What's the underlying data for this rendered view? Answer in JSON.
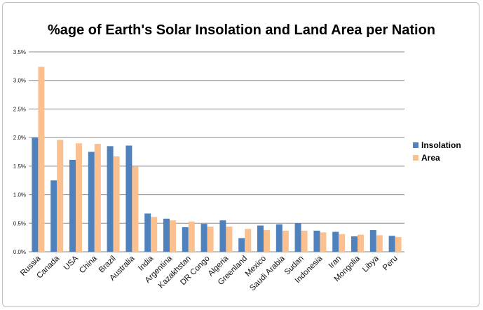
{
  "chart_data": {
    "type": "bar",
    "title": "%age of Earth's Solar Insolation and Land Area per Nation",
    "xlabel": "",
    "ylabel": "",
    "ylim": [
      0,
      3.5
    ],
    "yticks": [
      "0.0%",
      "0.5%",
      "1.0%",
      "1.5%",
      "2.0%",
      "2.5%",
      "3.0%",
      "3.5%"
    ],
    "grid": true,
    "legend_position": "right",
    "categories": [
      "Russia",
      "Canada",
      "USA",
      "China",
      "Brazil",
      "Australia",
      "India",
      "Argentina",
      "Kazakhstan",
      "DR Congo",
      "Algeria",
      "Greenland",
      "Mexico",
      "Saudi Arabia",
      "Sudan",
      "Indonesia",
      "Iran",
      "Mongolia",
      "Libya",
      "Peru"
    ],
    "series": [
      {
        "name": "Insolation",
        "color": "#4f81bd",
        "values": [
          2.0,
          1.25,
          1.61,
          1.75,
          1.85,
          1.86,
          0.67,
          0.58,
          0.43,
          0.49,
          0.55,
          0.24,
          0.46,
          0.48,
          0.5,
          0.37,
          0.35,
          0.27,
          0.38,
          0.28
        ]
      },
      {
        "name": "Area",
        "color": "#fac090",
        "values": [
          3.24,
          1.96,
          1.9,
          1.89,
          1.67,
          1.49,
          0.61,
          0.55,
          0.53,
          0.44,
          0.44,
          0.4,
          0.38,
          0.37,
          0.37,
          0.34,
          0.31,
          0.3,
          0.29,
          0.26
        ]
      }
    ]
  }
}
